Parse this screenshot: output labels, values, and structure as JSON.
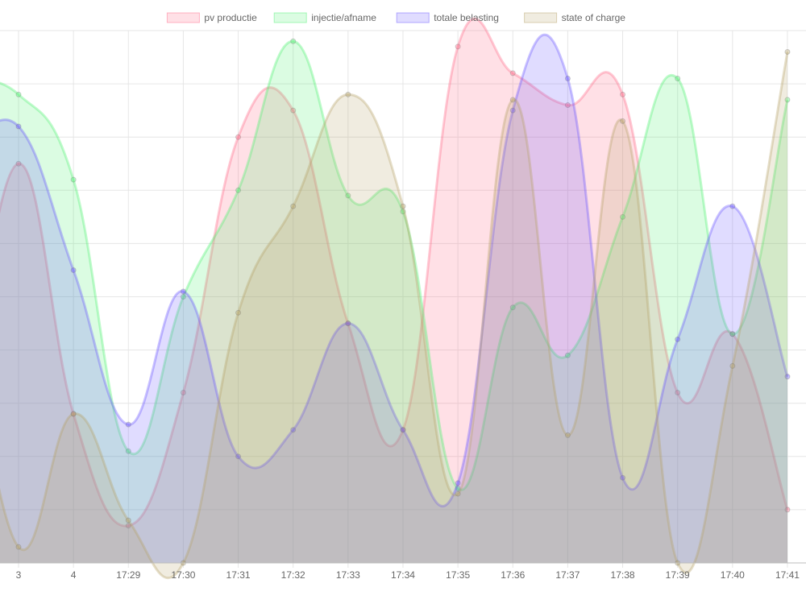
{
  "chart_data": {
    "type": "area",
    "x": [
      "3",
      "4",
      "17:29",
      "17:30",
      "17:31",
      "17:32",
      "17:33",
      "17:34",
      "17:35",
      "17:36",
      "17:37",
      "17:38",
      "17:39",
      "17:40",
      "17:41"
    ],
    "ylim": [
      0,
      100
    ],
    "grid": true,
    "legend_position": "top",
    "series": [
      {
        "name": "pv productie",
        "color": "#ff6384",
        "values": [
          75,
          28,
          7,
          32,
          80,
          85,
          45,
          25,
          97,
          92,
          86,
          88,
          32,
          43,
          10
        ],
        "start_value": 25
      },
      {
        "name": "injectie/afname",
        "color": "#4bf06e",
        "values": [
          88,
          72,
          21,
          50,
          70,
          98,
          69,
          66,
          14,
          48,
          39,
          65,
          91,
          43,
          87
        ],
        "start_value": 91
      },
      {
        "name": "totale belasting",
        "color": "#6450ff",
        "values": [
          82,
          55,
          26,
          51,
          20,
          25,
          45,
          25,
          15,
          85,
          91,
          16,
          42,
          67,
          35
        ],
        "start_value": 77
      },
      {
        "name": "state of charge",
        "color": "#b4a064",
        "values": [
          3,
          28,
          8,
          0,
          47,
          67,
          88,
          67,
          13,
          87,
          24,
          83,
          0,
          37,
          96
        ],
        "start_value": 52
      }
    ]
  }
}
